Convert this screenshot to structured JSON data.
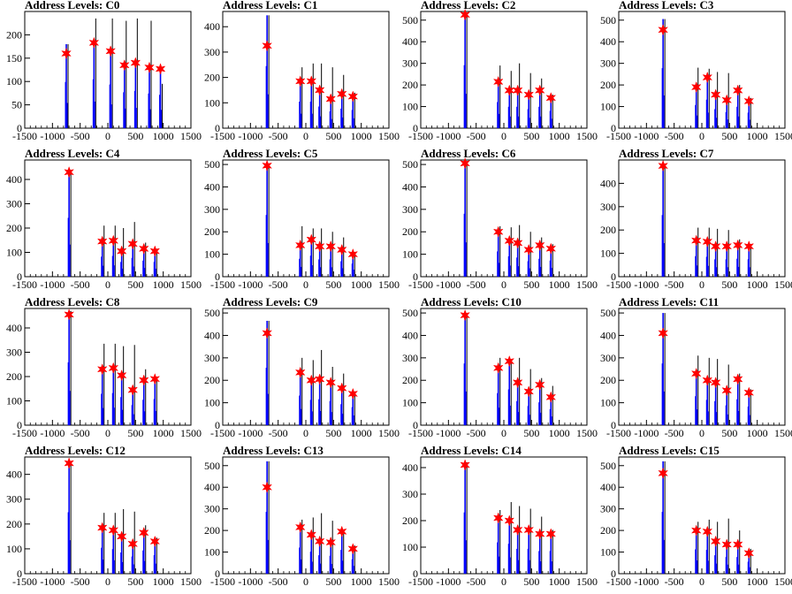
{
  "chart_data": [
    {
      "type": "histogram",
      "title": "Address Levels: C0",
      "xlim": [
        -1500,
        1500
      ],
      "ylim": [
        0,
        250
      ],
      "yticks": [
        0,
        50,
        100,
        150,
        200
      ],
      "xticks": [
        -1500,
        -1000,
        -500,
        0,
        500,
        1000,
        1500
      ],
      "xtick_labels": [
        "-1500",
        "-1000",
        "-500",
        "0",
        "500",
        "1000",
        "1500"
      ],
      "peaks_x": [
        -750,
        -250,
        50,
        300,
        500,
        750,
        950
      ],
      "peaks_y": [
        160,
        183,
        165,
        135,
        140,
        130,
        127
      ],
      "spike_max": [
        180,
        235,
        235,
        230,
        235,
        230,
        95
      ],
      "blue_max": [
        180,
        190,
        170,
        140,
        145,
        135,
        130
      ]
    },
    {
      "type": "histogram",
      "title": "Address Levels: C1",
      "xlim": [
        -1500,
        1500
      ],
      "ylim": [
        0,
        460
      ],
      "yticks": [
        0,
        100,
        200,
        300,
        400
      ],
      "xticks": [
        -1500,
        -1000,
        -500,
        0,
        500,
        1000,
        1500
      ],
      "xtick_labels": [
        "-1500",
        "-1000",
        "-500",
        "0",
        "500",
        "1000",
        "1500"
      ],
      "peaks_x": [
        -700,
        -100,
        100,
        250,
        450,
        650,
        850
      ],
      "peaks_y": [
        325,
        185,
        185,
        150,
        115,
        135,
        125
      ],
      "spike_max": [
        445,
        240,
        255,
        255,
        240,
        210,
        140
      ],
      "blue_max": [
        445,
        190,
        190,
        155,
        120,
        140,
        130
      ]
    },
    {
      "type": "histogram",
      "title": "Address Levels: C2",
      "xlim": [
        -1500,
        1500
      ],
      "ylim": [
        0,
        540
      ],
      "yticks": [
        0,
        100,
        200,
        300,
        400,
        500
      ],
      "xticks": [
        -1500,
        -1000,
        -500,
        0,
        500,
        1000,
        1500
      ],
      "xtick_labels": [
        "-1500",
        "-1000",
        "-500",
        "0",
        "500",
        "1000",
        "1500"
      ],
      "peaks_x": [
        -700,
        -100,
        100,
        250,
        450,
        650,
        850
      ],
      "peaks_y": [
        525,
        215,
        175,
        175,
        155,
        175,
        140
      ],
      "spike_max": [
        530,
        290,
        265,
        300,
        255,
        230,
        155
      ],
      "blue_max": [
        530,
        220,
        180,
        180,
        160,
        180,
        145
      ]
    },
    {
      "type": "histogram",
      "title": "Address Levels: C3",
      "xlim": [
        -1500,
        1500
      ],
      "ylim": [
        0,
        540
      ],
      "yticks": [
        0,
        100,
        200,
        300,
        400,
        500
      ],
      "xticks": [
        -1500,
        -1000,
        -500,
        0,
        500,
        1000,
        1500
      ],
      "xtick_labels": [
        "-1500",
        "-1000",
        "-500",
        "0",
        "500",
        "1000",
        "1500"
      ],
      "peaks_x": [
        -700,
        -100,
        100,
        250,
        450,
        650,
        850
      ],
      "peaks_y": [
        455,
        190,
        235,
        155,
        130,
        175,
        125
      ],
      "spike_max": [
        505,
        280,
        275,
        260,
        255,
        200,
        140
      ],
      "blue_max": [
        505,
        195,
        240,
        160,
        135,
        180,
        130
      ]
    },
    {
      "type": "histogram",
      "title": "Address Levels: C4",
      "xlim": [
        -1500,
        1500
      ],
      "ylim": [
        0,
        480
      ],
      "yticks": [
        0,
        100,
        200,
        300,
        400
      ],
      "xticks": [
        -1500,
        -1000,
        -500,
        0,
        500,
        1000,
        1500
      ],
      "xtick_labels": [
        "-1500",
        "-1000",
        "-500",
        "0",
        "500",
        "1000",
        "1500"
      ],
      "peaks_x": [
        -700,
        -100,
        100,
        250,
        450,
        650,
        850
      ],
      "peaks_y": [
        430,
        145,
        148,
        105,
        135,
        115,
        105
      ],
      "spike_max": [
        440,
        210,
        210,
        200,
        225,
        140,
        115
      ],
      "blue_max": [
        440,
        150,
        155,
        110,
        140,
        120,
        110
      ]
    },
    {
      "type": "histogram",
      "title": "Address Levels: C5",
      "xlim": [
        -1500,
        1500
      ],
      "ylim": [
        0,
        520
      ],
      "yticks": [
        0,
        100,
        200,
        300,
        400,
        500
      ],
      "xticks": [
        -1500,
        -1000,
        -500,
        0,
        500,
        1000,
        1500
      ],
      "xtick_labels": [
        "-1500",
        "-1000",
        "-500",
        "0",
        "500",
        "1000",
        "1500"
      ],
      "peaks_x": [
        -700,
        -100,
        100,
        250,
        450,
        650,
        850
      ],
      "peaks_y": [
        495,
        140,
        165,
        135,
        135,
        120,
        100
      ],
      "spike_max": [
        500,
        225,
        215,
        215,
        200,
        175,
        110
      ],
      "blue_max": [
        500,
        145,
        170,
        140,
        140,
        125,
        105
      ]
    },
    {
      "type": "histogram",
      "title": "Address Levels: C6",
      "xlim": [
        -1500,
        1500
      ],
      "ylim": [
        0,
        520
      ],
      "yticks": [
        0,
        100,
        200,
        300,
        400,
        500
      ],
      "xticks": [
        -1500,
        -1000,
        -500,
        0,
        500,
        1000,
        1500
      ],
      "xtick_labels": [
        "-1500",
        "-1000",
        "-500",
        "0",
        "500",
        "1000",
        "1500"
      ],
      "peaks_x": [
        -700,
        -100,
        100,
        250,
        450,
        650,
        850
      ],
      "peaks_y": [
        505,
        200,
        160,
        150,
        120,
        140,
        125
      ],
      "spike_max": [
        510,
        225,
        220,
        230,
        200,
        175,
        145
      ],
      "blue_max": [
        510,
        205,
        165,
        155,
        125,
        145,
        130
      ]
    },
    {
      "type": "histogram",
      "title": "Address Levels: C7",
      "xlim": [
        -1500,
        1500
      ],
      "ylim": [
        0,
        500
      ],
      "yticks": [
        0,
        100,
        200,
        300,
        400
      ],
      "xticks": [
        -1500,
        -1000,
        -500,
        0,
        500,
        1000,
        1500
      ],
      "xtick_labels": [
        "-1500",
        "-1000",
        "-500",
        "0",
        "500",
        "1000",
        "1500"
      ],
      "peaks_x": [
        -700,
        -100,
        100,
        250,
        450,
        650,
        850
      ],
      "peaks_y": [
        475,
        155,
        150,
        130,
        130,
        135,
        130
      ],
      "spike_max": [
        480,
        210,
        210,
        205,
        200,
        160,
        140
      ],
      "blue_max": [
        480,
        160,
        155,
        135,
        135,
        140,
        135
      ]
    },
    {
      "type": "histogram",
      "title": "Address Levels: C8",
      "xlim": [
        -1500,
        1500
      ],
      "ylim": [
        0,
        480
      ],
      "yticks": [
        0,
        100,
        200,
        300,
        400
      ],
      "xticks": [
        -1500,
        -1000,
        -500,
        0,
        500,
        1000,
        1500
      ],
      "xtick_labels": [
        "-1500",
        "-1000",
        "-500",
        "0",
        "500",
        "1000",
        "1500"
      ],
      "peaks_x": [
        -700,
        -100,
        100,
        250,
        450,
        650,
        850
      ],
      "peaks_y": [
        455,
        230,
        235,
        205,
        145,
        185,
        190
      ],
      "spike_max": [
        470,
        335,
        335,
        325,
        330,
        230,
        200
      ],
      "blue_max": [
        470,
        235,
        240,
        210,
        150,
        190,
        195
      ]
    },
    {
      "type": "histogram",
      "title": "Address Levels: C9",
      "xlim": [
        -1500,
        1500
      ],
      "ylim": [
        0,
        520
      ],
      "yticks": [
        0,
        100,
        200,
        300,
        400,
        500
      ],
      "xticks": [
        -1500,
        -1000,
        -500,
        0,
        500,
        1000,
        1500
      ],
      "xtick_labels": [
        "-1500",
        "-1000",
        "-500",
        "0",
        "500",
        "1000",
        "1500"
      ],
      "peaks_x": [
        -700,
        -100,
        100,
        250,
        450,
        650,
        850
      ],
      "peaks_y": [
        410,
        235,
        200,
        205,
        190,
        165,
        140
      ],
      "spike_max": [
        465,
        300,
        290,
        335,
        260,
        230,
        150
      ],
      "blue_max": [
        465,
        240,
        205,
        210,
        195,
        170,
        145
      ]
    },
    {
      "type": "histogram",
      "title": "Address Levels: C10",
      "xlim": [
        -1500,
        1500
      ],
      "ylim": [
        0,
        520
      ],
      "yticks": [
        0,
        100,
        200,
        300,
        400,
        500
      ],
      "xticks": [
        -1500,
        -1000,
        -500,
        0,
        500,
        1000,
        1500
      ],
      "xtick_labels": [
        "-1500",
        "-1000",
        "-500",
        "0",
        "500",
        "1000",
        "1500"
      ],
      "peaks_x": [
        -700,
        -100,
        100,
        250,
        450,
        650,
        850
      ],
      "peaks_y": [
        490,
        255,
        285,
        190,
        150,
        180,
        125
      ],
      "spike_max": [
        500,
        300,
        290,
        300,
        250,
        210,
        175
      ],
      "blue_max": [
        500,
        260,
        290,
        195,
        155,
        185,
        130
      ]
    },
    {
      "type": "histogram",
      "title": "Address Levels: C11",
      "xlim": [
        -1500,
        1500
      ],
      "ylim": [
        0,
        520
      ],
      "yticks": [
        0,
        100,
        200,
        300,
        400,
        500
      ],
      "xticks": [
        -1500,
        -1000,
        -500,
        0,
        500,
        1000,
        1500
      ],
      "xtick_labels": [
        "-1500",
        "-1000",
        "-500",
        "0",
        "500",
        "1000",
        "1500"
      ],
      "peaks_x": [
        -700,
        -100,
        100,
        250,
        450,
        650,
        850
      ],
      "peaks_y": [
        410,
        230,
        200,
        190,
        155,
        205,
        145
      ],
      "spike_max": [
        500,
        310,
        300,
        295,
        270,
        230,
        160
      ],
      "blue_max": [
        500,
        235,
        205,
        195,
        160,
        210,
        150
      ]
    },
    {
      "type": "histogram",
      "title": "Address Levels: C12",
      "xlim": [
        -1500,
        1500
      ],
      "ylim": [
        0,
        470
      ],
      "yticks": [
        0,
        100,
        200,
        300,
        400
      ],
      "xticks": [
        -1500,
        -1000,
        -500,
        0,
        500,
        1000,
        1500
      ],
      "xtick_labels": [
        "-1500",
        "-1000",
        "-500",
        "0",
        "500",
        "1000",
        "1500"
      ],
      "peaks_x": [
        -700,
        -100,
        100,
        250,
        450,
        650,
        850
      ],
      "peaks_y": [
        445,
        185,
        175,
        150,
        120,
        165,
        130
      ],
      "spike_max": [
        450,
        245,
        245,
        260,
        250,
        195,
        145
      ],
      "blue_max": [
        450,
        190,
        180,
        155,
        125,
        170,
        135
      ]
    },
    {
      "type": "histogram",
      "title": "Address Levels: C13",
      "xlim": [
        -1500,
        1500
      ],
      "ylim": [
        0,
        540
      ],
      "yticks": [
        0,
        100,
        200,
        300,
        400,
        500
      ],
      "xticks": [
        -1500,
        -1000,
        -500,
        0,
        500,
        1000,
        1500
      ],
      "xtick_labels": [
        "-1500",
        "-1000",
        "-500",
        "0",
        "500",
        "1000",
        "1500"
      ],
      "peaks_x": [
        -700,
        -100,
        100,
        250,
        450,
        650,
        850
      ],
      "peaks_y": [
        400,
        215,
        180,
        150,
        145,
        195,
        115
      ],
      "spike_max": [
        520,
        250,
        260,
        280,
        245,
        200,
        130
      ],
      "blue_max": [
        520,
        220,
        185,
        155,
        150,
        200,
        120
      ]
    },
    {
      "type": "histogram",
      "title": "Address Levels: C14",
      "xlim": [
        -1500,
        1500
      ],
      "ylim": [
        0,
        440
      ],
      "yticks": [
        0,
        100,
        200,
        300,
        400
      ],
      "xticks": [
        -1500,
        -1000,
        -500,
        0,
        500,
        1000,
        1500
      ],
      "xtick_labels": [
        "-1500",
        "-1000",
        "-500",
        "0",
        "500",
        "1000",
        "1500"
      ],
      "peaks_x": [
        -700,
        -100,
        100,
        250,
        450,
        650,
        850
      ],
      "peaks_y": [
        410,
        210,
        200,
        165,
        165,
        150,
        150
      ],
      "spike_max": [
        420,
        240,
        270,
        255,
        245,
        215,
        165
      ],
      "blue_max": [
        420,
        215,
        205,
        170,
        170,
        155,
        155
      ]
    },
    {
      "type": "histogram",
      "title": "Address Levels: C15",
      "xlim": [
        -1500,
        1500
      ],
      "ylim": [
        0,
        540
      ],
      "yticks": [
        0,
        100,
        200,
        300,
        400,
        500
      ],
      "xticks": [
        -1500,
        -1000,
        -500,
        0,
        500,
        1000,
        1500
      ],
      "xtick_labels": [
        "-1500",
        "-1000",
        "-500",
        "0",
        "500",
        "1000",
        "1500"
      ],
      "peaks_x": [
        -700,
        -100,
        100,
        250,
        450,
        650,
        850
      ],
      "peaks_y": [
        465,
        200,
        195,
        150,
        135,
        135,
        95
      ],
      "spike_max": [
        520,
        240,
        250,
        240,
        255,
        200,
        115
      ],
      "blue_max": [
        520,
        205,
        200,
        155,
        140,
        140,
        100
      ]
    }
  ],
  "colors": {
    "histogram": "#0000ff",
    "overflow_spikes": "#000000",
    "peak_marker": "#ff0000",
    "axes": "#000000"
  }
}
